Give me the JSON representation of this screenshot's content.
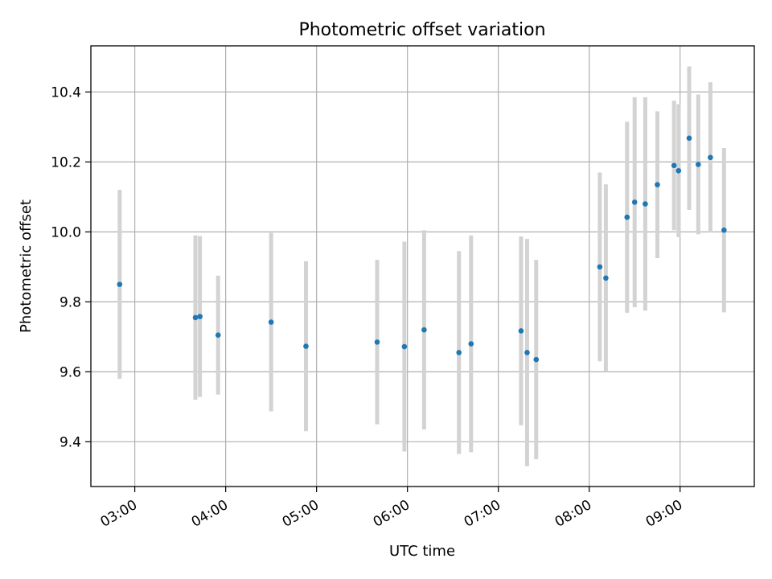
{
  "chart_data": {
    "type": "scatter",
    "title": "Photometric offset variation",
    "xlabel": "UTC time",
    "ylabel": "Photometric offset",
    "xlim": [
      "02:31",
      "09:49"
    ],
    "ylim": [
      9.272,
      10.532
    ],
    "grid": true,
    "x_ticks": [
      "03:00",
      "04:00",
      "05:00",
      "06:00",
      "07:00",
      "08:00",
      "09:00"
    ],
    "y_ticks": [
      9.4,
      9.6,
      9.8,
      10.0,
      10.2,
      10.4
    ],
    "y_tick_labels": [
      "9.4",
      "9.6",
      "9.8",
      "10.0",
      "10.2",
      "10.4"
    ],
    "marker_color": "#1f77b4",
    "errorbar_color": "#d3d3d3",
    "points": [
      {
        "t": "02:50",
        "y": 9.85,
        "err": 0.27
      },
      {
        "t": "03:40",
        "y": 9.755,
        "err": 0.235
      },
      {
        "t": "03:43",
        "y": 9.758,
        "err": 0.23
      },
      {
        "t": "03:55",
        "y": 9.705,
        "err": 0.17
      },
      {
        "t": "04:30",
        "y": 9.742,
        "err": 0.255
      },
      {
        "t": "04:53",
        "y": 9.673,
        "err": 0.243
      },
      {
        "t": "05:40",
        "y": 9.685,
        "err": 0.235
      },
      {
        "t": "05:58",
        "y": 9.672,
        "err": 0.3
      },
      {
        "t": "06:11",
        "y": 9.72,
        "err": 0.285
      },
      {
        "t": "06:34",
        "y": 9.655,
        "err": 0.29
      },
      {
        "t": "06:42",
        "y": 9.68,
        "err": 0.31
      },
      {
        "t": "07:15",
        "y": 9.717,
        "err": 0.27
      },
      {
        "t": "07:19",
        "y": 9.655,
        "err": 0.325
      },
      {
        "t": "07:25",
        "y": 9.635,
        "err": 0.285
      },
      {
        "t": "08:07",
        "y": 9.9,
        "err": 0.27
      },
      {
        "t": "08:11",
        "y": 9.868,
        "err": 0.268
      },
      {
        "t": "08:25",
        "y": 10.042,
        "err": 0.273
      },
      {
        "t": "08:30",
        "y": 10.085,
        "err": 0.3
      },
      {
        "t": "08:37",
        "y": 10.08,
        "err": 0.305
      },
      {
        "t": "08:45",
        "y": 10.135,
        "err": 0.21
      },
      {
        "t": "08:56",
        "y": 10.19,
        "err": 0.185
      },
      {
        "t": "08:59",
        "y": 10.175,
        "err": 0.19
      },
      {
        "t": "09:06",
        "y": 10.268,
        "err": 0.205
      },
      {
        "t": "09:12",
        "y": 10.193,
        "err": 0.2
      },
      {
        "t": "09:20",
        "y": 10.213,
        "err": 0.215
      },
      {
        "t": "09:29",
        "y": 10.005,
        "err": 0.235
      }
    ]
  }
}
